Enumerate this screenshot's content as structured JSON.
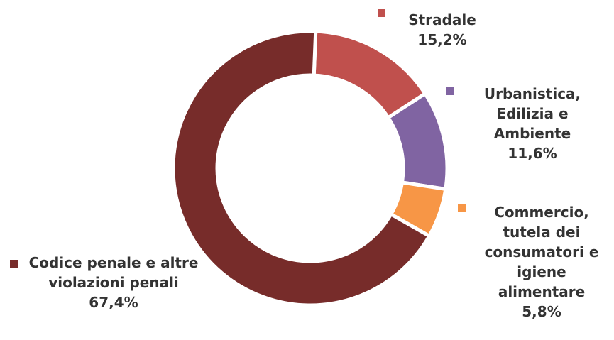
{
  "chart_data": {
    "type": "donut",
    "categories": [
      "Stradale",
      "Urbanistica, Edilizia e Ambiente",
      "Commercio, tutela dei consumatori e igiene alimentare",
      "Codice penale e altre violazioni penali"
    ],
    "values": [
      15.2,
      11.6,
      5.8,
      67.4
    ],
    "value_labels": [
      "15,2%",
      "11,6%",
      "5,8%",
      "67,4%"
    ],
    "colors": [
      "#c0504d",
      "#8064a2",
      "#f79646",
      "#772c2a"
    ]
  }
}
